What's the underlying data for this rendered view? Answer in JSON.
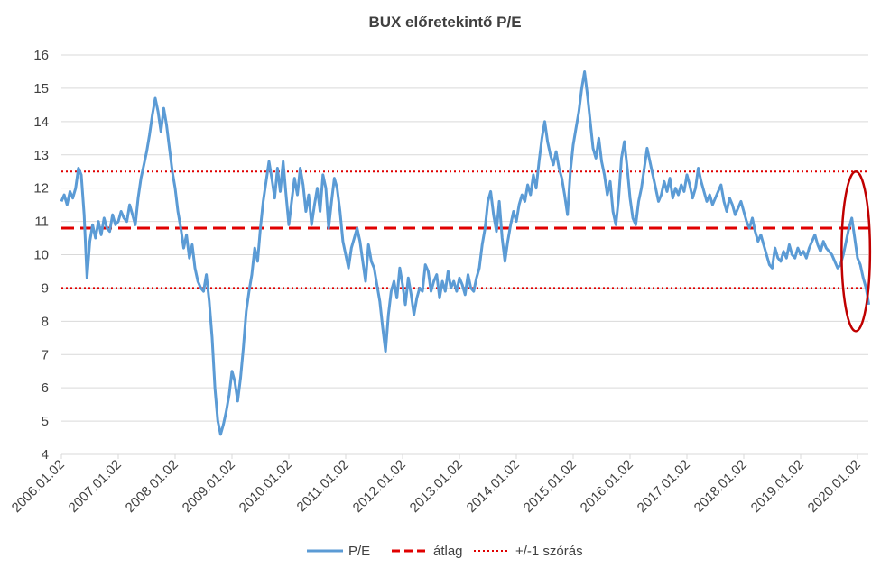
{
  "chart_data": {
    "type": "line",
    "title": "BUX előretekintő P/E",
    "xlabel": "",
    "ylabel": "",
    "ylim": [
      4,
      16
    ],
    "yticks": [
      4,
      5,
      6,
      7,
      8,
      9,
      10,
      11,
      12,
      13,
      14,
      15,
      16
    ],
    "xticks": [
      "2006.01.02",
      "2007.01.02",
      "2008.01.02",
      "2009.01.02",
      "2010.01.02",
      "2011.01.02",
      "2012.01.02",
      "2013.01.02",
      "2014.01.02",
      "2015.01.02",
      "2016.01.02",
      "2017.01.02",
      "2018.01.02",
      "2019.01.02",
      "2020.01.02"
    ],
    "xlim": [
      2006.0,
      2020.22
    ],
    "grid": true,
    "legend_position": "bottom",
    "colors": {
      "pe": "#5b9bd5",
      "mean": "#e00000",
      "std": "#e00000",
      "annotation": "#c00000"
    },
    "series": [
      {
        "name": "P/E",
        "style": "solid",
        "x": [
          2006.0,
          2006.05,
          2006.1,
          2006.15,
          2006.2,
          2006.25,
          2006.3,
          2006.35,
          2006.4,
          2006.45,
          2006.5,
          2006.55,
          2006.6,
          2006.65,
          2006.7,
          2006.75,
          2006.8,
          2006.85,
          2006.9,
          2006.95,
          2007.0,
          2007.05,
          2007.1,
          2007.15,
          2007.2,
          2007.25,
          2007.3,
          2007.35,
          2007.4,
          2007.45,
          2007.5,
          2007.55,
          2007.6,
          2007.65,
          2007.7,
          2007.75,
          2007.8,
          2007.85,
          2007.9,
          2007.95,
          2008.0,
          2008.05,
          2008.1,
          2008.15,
          2008.2,
          2008.25,
          2008.3,
          2008.35,
          2008.4,
          2008.45,
          2008.5,
          2008.55,
          2008.6,
          2008.65,
          2008.7,
          2008.75,
          2008.8,
          2008.85,
          2008.9,
          2008.95,
          2009.0,
          2009.05,
          2009.1,
          2009.15,
          2009.2,
          2009.25,
          2009.3,
          2009.35,
          2009.4,
          2009.45,
          2009.5,
          2009.55,
          2009.6,
          2009.65,
          2009.7,
          2009.75,
          2009.8,
          2009.85,
          2009.9,
          2009.95,
          2010.0,
          2010.05,
          2010.1,
          2010.15,
          2010.2,
          2010.25,
          2010.3,
          2010.35,
          2010.4,
          2010.45,
          2010.5,
          2010.55,
          2010.6,
          2010.65,
          2010.7,
          2010.75,
          2010.8,
          2010.85,
          2010.9,
          2010.95,
          2011.0,
          2011.05,
          2011.1,
          2011.15,
          2011.2,
          2011.25,
          2011.3,
          2011.35,
          2011.4,
          2011.45,
          2011.5,
          2011.55,
          2011.6,
          2011.65,
          2011.7,
          2011.75,
          2011.8,
          2011.85,
          2011.9,
          2011.95,
          2012.0,
          2012.05,
          2012.1,
          2012.15,
          2012.2,
          2012.25,
          2012.3,
          2012.35,
          2012.4,
          2012.45,
          2012.5,
          2012.55,
          2012.6,
          2012.65,
          2012.7,
          2012.75,
          2012.8,
          2012.85,
          2012.9,
          2012.95,
          2013.0,
          2013.05,
          2013.1,
          2013.15,
          2013.2,
          2013.25,
          2013.3,
          2013.35,
          2013.4,
          2013.45,
          2013.5,
          2013.55,
          2013.6,
          2013.65,
          2013.7,
          2013.75,
          2013.8,
          2013.85,
          2013.9,
          2013.95,
          2014.0,
          2014.05,
          2014.1,
          2014.15,
          2014.2,
          2014.25,
          2014.3,
          2014.35,
          2014.4,
          2014.45,
          2014.5,
          2014.55,
          2014.6,
          2014.65,
          2014.7,
          2014.75,
          2014.8,
          2014.85,
          2014.9,
          2014.95,
          2015.0,
          2015.05,
          2015.1,
          2015.15,
          2015.2,
          2015.25,
          2015.3,
          2015.35,
          2015.4,
          2015.45,
          2015.5,
          2015.55,
          2015.6,
          2015.65,
          2015.7,
          2015.75,
          2015.8,
          2015.85,
          2015.9,
          2015.95,
          2016.0,
          2016.05,
          2016.1,
          2016.15,
          2016.2,
          2016.25,
          2016.3,
          2016.35,
          2016.4,
          2016.45,
          2016.5,
          2016.55,
          2016.6,
          2016.65,
          2016.7,
          2016.75,
          2016.8,
          2016.85,
          2016.9,
          2016.95,
          2017.0,
          2017.05,
          2017.1,
          2017.15,
          2017.2,
          2017.25,
          2017.3,
          2017.35,
          2017.4,
          2017.45,
          2017.5,
          2017.55,
          2017.6,
          2017.65,
          2017.7,
          2017.75,
          2017.8,
          2017.85,
          2017.9,
          2017.95,
          2018.0,
          2018.05,
          2018.1,
          2018.15,
          2018.2,
          2018.25,
          2018.3,
          2018.35,
          2018.4,
          2018.45,
          2018.5,
          2018.55,
          2018.6,
          2018.65,
          2018.7,
          2018.75,
          2018.8,
          2018.85,
          2018.9,
          2018.95,
          2019.0,
          2019.05,
          2019.1,
          2019.15,
          2019.2,
          2019.25,
          2019.3,
          2019.35,
          2019.4,
          2019.45,
          2019.5,
          2019.55,
          2019.6,
          2019.65,
          2019.7,
          2019.75,
          2019.8,
          2019.85,
          2019.9,
          2019.95,
          2020.0,
          2020.05,
          2020.1,
          2020.15,
          2020.2
        ],
        "values": [
          11.6,
          11.8,
          11.5,
          11.9,
          11.7,
          12.0,
          12.6,
          12.4,
          11.2,
          9.3,
          10.4,
          10.9,
          10.5,
          11.0,
          10.6,
          11.1,
          10.8,
          10.7,
          11.2,
          10.9,
          11.0,
          11.3,
          11.1,
          11.0,
          11.5,
          11.2,
          10.9,
          11.7,
          12.3,
          12.7,
          13.1,
          13.6,
          14.2,
          14.7,
          14.3,
          13.7,
          14.4,
          13.9,
          13.2,
          12.5,
          12.0,
          11.3,
          10.8,
          10.2,
          10.6,
          9.9,
          10.3,
          9.6,
          9.2,
          9.0,
          8.9,
          9.4,
          8.6,
          7.5,
          6.0,
          5.0,
          4.6,
          4.9,
          5.3,
          5.8,
          6.5,
          6.2,
          5.6,
          6.3,
          7.2,
          8.3,
          8.9,
          9.4,
          10.2,
          9.8,
          10.8,
          11.6,
          12.2,
          12.8,
          12.3,
          11.7,
          12.6,
          11.9,
          12.8,
          11.8,
          10.9,
          11.6,
          12.3,
          11.8,
          12.6,
          12.1,
          11.3,
          11.8,
          10.9,
          11.5,
          12.0,
          11.3,
          12.4,
          12.0,
          10.8,
          11.6,
          12.3,
          12.0,
          11.3,
          10.4,
          10.0,
          9.6,
          10.2,
          10.5,
          10.8,
          10.4,
          9.8,
          9.2,
          10.3,
          9.8,
          9.6,
          9.1,
          8.6,
          7.8,
          7.1,
          8.2,
          8.9,
          9.2,
          8.7,
          9.6,
          9.1,
          8.5,
          9.3,
          8.8,
          8.2,
          8.7,
          9.0,
          8.9,
          9.7,
          9.5,
          8.9,
          9.2,
          9.4,
          8.7,
          9.2,
          8.9,
          9.5,
          9.0,
          9.2,
          8.9,
          9.3,
          9.1,
          8.8,
          9.4,
          9.0,
          8.9,
          9.3,
          9.6,
          10.3,
          10.8,
          11.6,
          11.9,
          11.2,
          10.7,
          11.6,
          10.5,
          9.8,
          10.4,
          10.9,
          11.3,
          11.0,
          11.5,
          11.8,
          11.6,
          12.1,
          11.8,
          12.4,
          12.0,
          12.8,
          13.5,
          14.0,
          13.4,
          13.0,
          12.7,
          13.1,
          12.6,
          12.3,
          11.8,
          11.2,
          12.5,
          13.3,
          13.8,
          14.3,
          15.0,
          15.5,
          14.8,
          14.0,
          13.2,
          12.9,
          13.5,
          12.8,
          12.4,
          11.8,
          12.2,
          11.3,
          10.9,
          11.7,
          12.9,
          13.4,
          12.6,
          11.7,
          11.1,
          10.9,
          11.6,
          12.0,
          12.6,
          13.2,
          12.8,
          12.4,
          12.0,
          11.6,
          11.8,
          12.2,
          11.9,
          12.3,
          11.7,
          12.0,
          11.8,
          12.1,
          11.9,
          12.4,
          12.1,
          11.7,
          12.0,
          12.6,
          12.2,
          11.9,
          11.6,
          11.8,
          11.5,
          11.7,
          11.9,
          12.1,
          11.6,
          11.3,
          11.7,
          11.5,
          11.2,
          11.4,
          11.6,
          11.3,
          11.0,
          10.8,
          11.1,
          10.7,
          10.4,
          10.6,
          10.3,
          10.0,
          9.7,
          9.6,
          10.2,
          9.9,
          9.8,
          10.1,
          9.9,
          10.3,
          10.0,
          9.9,
          10.2,
          10.0,
          10.1,
          9.9,
          10.2,
          10.4,
          10.6,
          10.3,
          10.1,
          10.4,
          10.2,
          10.1,
          10.0,
          9.8,
          9.6,
          9.7,
          10.0,
          10.4,
          10.8,
          11.1,
          10.5,
          9.9,
          9.7,
          9.3,
          9.0,
          8.5
        ]
      },
      {
        "name": "átlag",
        "style": "dashed",
        "value": 10.8
      },
      {
        "name": "+/-1 szórás",
        "style": "dotted",
        "values": [
          12.5,
          9.0
        ]
      }
    ],
    "annotation": {
      "type": "ellipse",
      "description": "",
      "x_range": [
        2019.72,
        2020.22
      ],
      "y_range": [
        7.7,
        12.5
      ]
    }
  }
}
